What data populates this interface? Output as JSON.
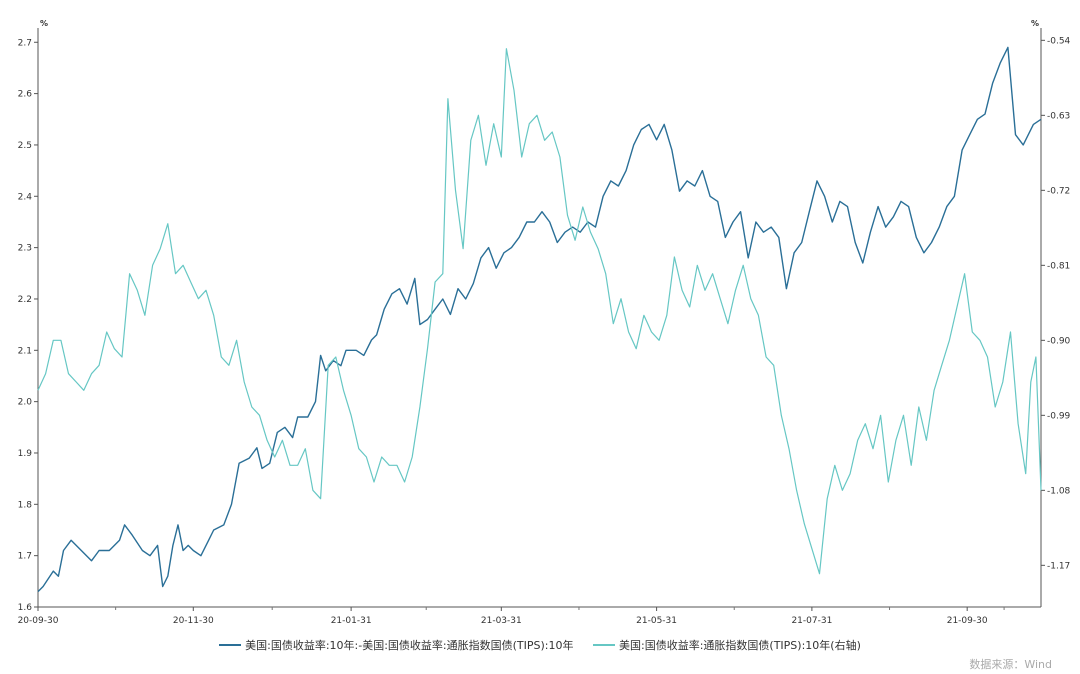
{
  "chart_data": {
    "type": "line",
    "x_ticks": [
      "20-09-30",
      "20-11-30",
      "21-01-31",
      "21-03-31",
      "21-05-31",
      "21-07-31",
      "21-09-30"
    ],
    "left_axis": {
      "unit": "%",
      "ylim": [
        1.6,
        2.72
      ],
      "ticks": [
        "1.6",
        "1.7",
        "1.8",
        "1.9",
        "2.0",
        "2.1",
        "2.2",
        "2.3",
        "2.4",
        "2.5",
        "2.6",
        "2.7"
      ]
    },
    "right_axis": {
      "unit": "%",
      "ylim": [
        -1.22,
        -0.53
      ],
      "ticks": [
        "-0.54",
        "-0.63",
        "-0.72",
        "-0.81",
        "-0.90",
        "-0.99",
        "-1.08",
        "-1.17"
      ]
    },
    "x_range": [
      "2020-09-30",
      "2021-10-29"
    ],
    "series": [
      {
        "name": "美国:国债收益率:10年:-美国:国债收益率:通胀指数国债(TIPS):10年",
        "axis": "left",
        "color": "#2a6f97",
        "points": [
          [
            "2020-09-30",
            1.63
          ],
          [
            "2020-10-02",
            1.64
          ],
          [
            "2020-10-06",
            1.67
          ],
          [
            "2020-10-08",
            1.66
          ],
          [
            "2020-10-10",
            1.71
          ],
          [
            "2020-10-13",
            1.73
          ],
          [
            "2020-10-17",
            1.71
          ],
          [
            "2020-10-21",
            1.69
          ],
          [
            "2020-10-24",
            1.71
          ],
          [
            "2020-10-28",
            1.71
          ],
          [
            "2020-11-01",
            1.73
          ],
          [
            "2020-11-03",
            1.76
          ],
          [
            "2020-11-06",
            1.74
          ],
          [
            "2020-11-10",
            1.71
          ],
          [
            "2020-11-13",
            1.7
          ],
          [
            "2020-11-16",
            1.72
          ],
          [
            "2020-11-18",
            1.64
          ],
          [
            "2020-11-20",
            1.66
          ],
          [
            "2020-11-22",
            1.72
          ],
          [
            "2020-11-24",
            1.76
          ],
          [
            "2020-11-26",
            1.71
          ],
          [
            "2020-11-28",
            1.72
          ],
          [
            "2020-11-30",
            1.71
          ],
          [
            "2020-12-03",
            1.7
          ],
          [
            "2020-12-06",
            1.73
          ],
          [
            "2020-12-08",
            1.75
          ],
          [
            "2020-12-12",
            1.76
          ],
          [
            "2020-12-15",
            1.8
          ],
          [
            "2020-12-18",
            1.88
          ],
          [
            "2020-12-22",
            1.89
          ],
          [
            "2020-12-25",
            1.91
          ],
          [
            "2020-12-27",
            1.87
          ],
          [
            "2020-12-30",
            1.88
          ],
          [
            "2021-01-02",
            1.94
          ],
          [
            "2021-01-05",
            1.95
          ],
          [
            "2021-01-08",
            1.93
          ],
          [
            "2021-01-10",
            1.97
          ],
          [
            "2021-01-14",
            1.97
          ],
          [
            "2021-01-17",
            2.0
          ],
          [
            "2021-01-19",
            2.09
          ],
          [
            "2021-01-21",
            2.06
          ],
          [
            "2021-01-24",
            2.08
          ],
          [
            "2021-01-27",
            2.07
          ],
          [
            "2021-01-29",
            2.1
          ],
          [
            "2021-02-02",
            2.1
          ],
          [
            "2021-02-05",
            2.09
          ],
          [
            "2021-02-08",
            2.12
          ],
          [
            "2021-02-10",
            2.13
          ],
          [
            "2021-02-13",
            2.18
          ],
          [
            "2021-02-16",
            2.21
          ],
          [
            "2021-02-19",
            2.22
          ],
          [
            "2021-02-22",
            2.19
          ],
          [
            "2021-02-25",
            2.24
          ],
          [
            "2021-02-27",
            2.15
          ],
          [
            "2021-03-02",
            2.16
          ],
          [
            "2021-03-05",
            2.18
          ],
          [
            "2021-03-08",
            2.2
          ],
          [
            "2021-03-11",
            2.17
          ],
          [
            "2021-03-14",
            2.22
          ],
          [
            "2021-03-17",
            2.2
          ],
          [
            "2021-03-20",
            2.23
          ],
          [
            "2021-03-23",
            2.28
          ],
          [
            "2021-03-26",
            2.3
          ],
          [
            "2021-03-29",
            2.26
          ],
          [
            "2021-04-01",
            2.29
          ],
          [
            "2021-04-04",
            2.3
          ],
          [
            "2021-04-07",
            2.32
          ],
          [
            "2021-04-10",
            2.35
          ],
          [
            "2021-04-13",
            2.35
          ],
          [
            "2021-04-16",
            2.37
          ],
          [
            "2021-04-19",
            2.35
          ],
          [
            "2021-04-22",
            2.31
          ],
          [
            "2021-04-25",
            2.33
          ],
          [
            "2021-04-28",
            2.34
          ],
          [
            "2021-05-01",
            2.33
          ],
          [
            "2021-05-04",
            2.35
          ],
          [
            "2021-05-07",
            2.34
          ],
          [
            "2021-05-10",
            2.4
          ],
          [
            "2021-05-13",
            2.43
          ],
          [
            "2021-05-16",
            2.42
          ],
          [
            "2021-05-19",
            2.45
          ],
          [
            "2021-05-22",
            2.5
          ],
          [
            "2021-05-25",
            2.53
          ],
          [
            "2021-05-28",
            2.54
          ],
          [
            "2021-05-31",
            2.51
          ],
          [
            "2021-06-03",
            2.54
          ],
          [
            "2021-06-06",
            2.49
          ],
          [
            "2021-06-09",
            2.41
          ],
          [
            "2021-06-12",
            2.43
          ],
          [
            "2021-06-15",
            2.42
          ],
          [
            "2021-06-18",
            2.45
          ],
          [
            "2021-06-21",
            2.4
          ],
          [
            "2021-06-24",
            2.39
          ],
          [
            "2021-06-27",
            2.32
          ],
          [
            "2021-06-30",
            2.35
          ],
          [
            "2021-07-03",
            2.37
          ],
          [
            "2021-07-06",
            2.28
          ],
          [
            "2021-07-09",
            2.35
          ],
          [
            "2021-07-12",
            2.33
          ],
          [
            "2021-07-15",
            2.34
          ],
          [
            "2021-07-18",
            2.32
          ],
          [
            "2021-07-21",
            2.22
          ],
          [
            "2021-07-24",
            2.29
          ],
          [
            "2021-07-27",
            2.31
          ],
          [
            "2021-07-30",
            2.37
          ],
          [
            "2021-08-02",
            2.43
          ],
          [
            "2021-08-05",
            2.4
          ],
          [
            "2021-08-08",
            2.35
          ],
          [
            "2021-08-11",
            2.39
          ],
          [
            "2021-08-14",
            2.38
          ],
          [
            "2021-08-17",
            2.31
          ],
          [
            "2021-08-20",
            2.27
          ],
          [
            "2021-08-23",
            2.33
          ],
          [
            "2021-08-26",
            2.38
          ],
          [
            "2021-08-29",
            2.34
          ],
          [
            "2021-09-01",
            2.36
          ],
          [
            "2021-09-04",
            2.39
          ],
          [
            "2021-09-07",
            2.38
          ],
          [
            "2021-09-10",
            2.32
          ],
          [
            "2021-09-13",
            2.29
          ],
          [
            "2021-09-16",
            2.31
          ],
          [
            "2021-09-19",
            2.34
          ],
          [
            "2021-09-22",
            2.38
          ],
          [
            "2021-09-25",
            2.4
          ],
          [
            "2021-09-28",
            2.49
          ],
          [
            "2021-10-01",
            2.52
          ],
          [
            "2021-10-04",
            2.55
          ],
          [
            "2021-10-07",
            2.56
          ],
          [
            "2021-10-10",
            2.62
          ],
          [
            "2021-10-13",
            2.66
          ],
          [
            "2021-10-16",
            2.69
          ],
          [
            "2021-10-19",
            2.52
          ],
          [
            "2021-10-22",
            2.5
          ],
          [
            "2021-10-26",
            2.54
          ],
          [
            "2021-10-29",
            2.55
          ]
        ]
      },
      {
        "name": "美国:国债收益率:通胀指数国债(TIPS):10年(右轴)",
        "axis": "right",
        "color": "#66c7c4",
        "points": [
          [
            "2020-09-30",
            -0.96
          ],
          [
            "2020-10-03",
            -0.94
          ],
          [
            "2020-10-06",
            -0.9
          ],
          [
            "2020-10-09",
            -0.9
          ],
          [
            "2020-10-12",
            -0.94
          ],
          [
            "2020-10-15",
            -0.95
          ],
          [
            "2020-10-18",
            -0.96
          ],
          [
            "2020-10-21",
            -0.94
          ],
          [
            "2020-10-24",
            -0.93
          ],
          [
            "2020-10-27",
            -0.89
          ],
          [
            "2020-10-30",
            -0.91
          ],
          [
            "2020-11-02",
            -0.92
          ],
          [
            "2020-11-05",
            -0.82
          ],
          [
            "2020-11-08",
            -0.84
          ],
          [
            "2020-11-11",
            -0.87
          ],
          [
            "2020-11-14",
            -0.81
          ],
          [
            "2020-11-17",
            -0.79
          ],
          [
            "2020-11-20",
            -0.76
          ],
          [
            "2020-11-23",
            -0.82
          ],
          [
            "2020-11-26",
            -0.81
          ],
          [
            "2020-11-29",
            -0.83
          ],
          [
            "2020-12-02",
            -0.85
          ],
          [
            "2020-12-05",
            -0.84
          ],
          [
            "2020-12-08",
            -0.87
          ],
          [
            "2020-12-11",
            -0.92
          ],
          [
            "2020-12-14",
            -0.93
          ],
          [
            "2020-12-17",
            -0.9
          ],
          [
            "2020-12-20",
            -0.95
          ],
          [
            "2020-12-23",
            -0.98
          ],
          [
            "2020-12-26",
            -0.99
          ],
          [
            "2020-12-29",
            -1.02
          ],
          [
            "2021-01-01",
            -1.04
          ],
          [
            "2021-01-04",
            -1.02
          ],
          [
            "2021-01-07",
            -1.05
          ],
          [
            "2021-01-10",
            -1.05
          ],
          [
            "2021-01-13",
            -1.03
          ],
          [
            "2021-01-16",
            -1.08
          ],
          [
            "2021-01-19",
            -1.09
          ],
          [
            "2021-01-22",
            -0.93
          ],
          [
            "2021-01-25",
            -0.92
          ],
          [
            "2021-01-28",
            -0.96
          ],
          [
            "2021-01-31",
            -0.99
          ],
          [
            "2021-02-03",
            -1.03
          ],
          [
            "2021-02-06",
            -1.04
          ],
          [
            "2021-02-09",
            -1.07
          ],
          [
            "2021-02-12",
            -1.04
          ],
          [
            "2021-02-15",
            -1.05
          ],
          [
            "2021-02-18",
            -1.05
          ],
          [
            "2021-02-21",
            -1.07
          ],
          [
            "2021-02-24",
            -1.04
          ],
          [
            "2021-02-27",
            -0.98
          ],
          [
            "2021-03-02",
            -0.91
          ],
          [
            "2021-03-05",
            -0.83
          ],
          [
            "2021-03-08",
            -0.82
          ],
          [
            "2021-03-10",
            -0.61
          ],
          [
            "2021-03-13",
            -0.72
          ],
          [
            "2021-03-16",
            -0.79
          ],
          [
            "2021-03-19",
            -0.66
          ],
          [
            "2021-03-22",
            -0.63
          ],
          [
            "2021-03-25",
            -0.69
          ],
          [
            "2021-03-28",
            -0.64
          ],
          [
            "2021-03-31",
            -0.68
          ],
          [
            "2021-04-02",
            -0.55
          ],
          [
            "2021-04-05",
            -0.6
          ],
          [
            "2021-04-08",
            -0.68
          ],
          [
            "2021-04-11",
            -0.64
          ],
          [
            "2021-04-14",
            -0.63
          ],
          [
            "2021-04-17",
            -0.66
          ],
          [
            "2021-04-20",
            -0.65
          ],
          [
            "2021-04-23",
            -0.68
          ],
          [
            "2021-04-26",
            -0.75
          ],
          [
            "2021-04-29",
            -0.78
          ],
          [
            "2021-05-02",
            -0.74
          ],
          [
            "2021-05-05",
            -0.77
          ],
          [
            "2021-05-08",
            -0.79
          ],
          [
            "2021-05-11",
            -0.82
          ],
          [
            "2021-05-14",
            -0.88
          ],
          [
            "2021-05-17",
            -0.85
          ],
          [
            "2021-05-20",
            -0.89
          ],
          [
            "2021-05-23",
            -0.91
          ],
          [
            "2021-05-26",
            -0.87
          ],
          [
            "2021-05-29",
            -0.89
          ],
          [
            "2021-06-01",
            -0.9
          ],
          [
            "2021-06-04",
            -0.87
          ],
          [
            "2021-06-07",
            -0.8
          ],
          [
            "2021-06-10",
            -0.84
          ],
          [
            "2021-06-13",
            -0.86
          ],
          [
            "2021-06-16",
            -0.81
          ],
          [
            "2021-06-19",
            -0.84
          ],
          [
            "2021-06-22",
            -0.82
          ],
          [
            "2021-06-25",
            -0.85
          ],
          [
            "2021-06-28",
            -0.88
          ],
          [
            "2021-07-01",
            -0.84
          ],
          [
            "2021-07-04",
            -0.81
          ],
          [
            "2021-07-07",
            -0.85
          ],
          [
            "2021-07-10",
            -0.87
          ],
          [
            "2021-07-13",
            -0.92
          ],
          [
            "2021-07-16",
            -0.93
          ],
          [
            "2021-07-19",
            -0.99
          ],
          [
            "2021-07-22",
            -1.03
          ],
          [
            "2021-07-25",
            -1.08
          ],
          [
            "2021-07-28",
            -1.12
          ],
          [
            "2021-07-31",
            -1.15
          ],
          [
            "2021-08-03",
            -1.18
          ],
          [
            "2021-08-06",
            -1.09
          ],
          [
            "2021-08-09",
            -1.05
          ],
          [
            "2021-08-12",
            -1.08
          ],
          [
            "2021-08-15",
            -1.06
          ],
          [
            "2021-08-18",
            -1.02
          ],
          [
            "2021-08-21",
            -1.0
          ],
          [
            "2021-08-24",
            -1.03
          ],
          [
            "2021-08-27",
            -0.99
          ],
          [
            "2021-08-30",
            -1.07
          ],
          [
            "2021-09-02",
            -1.02
          ],
          [
            "2021-09-05",
            -0.99
          ],
          [
            "2021-09-08",
            -1.05
          ],
          [
            "2021-09-11",
            -0.98
          ],
          [
            "2021-09-14",
            -1.02
          ],
          [
            "2021-09-17",
            -0.96
          ],
          [
            "2021-09-20",
            -0.93
          ],
          [
            "2021-09-23",
            -0.9
          ],
          [
            "2021-09-26",
            -0.86
          ],
          [
            "2021-09-29",
            -0.82
          ],
          [
            "2021-10-02",
            -0.89
          ],
          [
            "2021-10-05",
            -0.9
          ],
          [
            "2021-10-08",
            -0.92
          ],
          [
            "2021-10-11",
            -0.98
          ],
          [
            "2021-10-14",
            -0.95
          ],
          [
            "2021-10-17",
            -0.89
          ],
          [
            "2021-10-20",
            -1.0
          ],
          [
            "2021-10-23",
            -1.06
          ],
          [
            "2021-10-25",
            -0.95
          ],
          [
            "2021-10-27",
            -0.92
          ],
          [
            "2021-10-29",
            -1.08
          ]
        ]
      }
    ]
  },
  "legend": {
    "series_1": "美国:国债收益率:10年:-美国:国债收益率:通胀指数国债(TIPS):10年",
    "series_2": "美国:国债收益率:通胀指数国债(TIPS):10年(右轴)"
  },
  "source_text": "数据来源：Wind"
}
